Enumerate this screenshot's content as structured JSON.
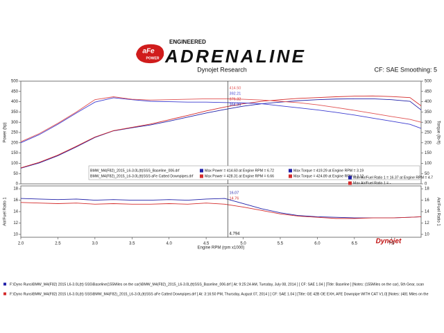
{
  "header": {
    "brand": "aFe",
    "brand_sub": "POWER",
    "tagline": "ENGINEERED",
    "title": "ADRENALINE",
    "subtitle": "Dynojet Research",
    "settings": "CF: SAE Smoothing: 5"
  },
  "chart_data": [
    {
      "type": "line",
      "y_label": "Power (hp)",
      "y2_label": "Torque (lb-ft)",
      "x": [
        2.0,
        2.25,
        2.5,
        2.75,
        3.0,
        3.25,
        3.5,
        3.75,
        4.0,
        4.25,
        4.5,
        4.75,
        5.0,
        5.25,
        5.5,
        5.75,
        6.0,
        6.25,
        6.5,
        6.75,
        7.0,
        7.25,
        7.4
      ],
      "xlim": [
        2,
        7.4
      ],
      "ylim": [
        0,
        500
      ],
      "yticks": [
        0,
        50,
        100,
        150,
        200,
        250,
        300,
        350,
        400,
        450,
        500
      ],
      "y2lim": [
        0,
        500
      ],
      "y2ticks": [
        0,
        50,
        100,
        150,
        200,
        250,
        300,
        350,
        400,
        450,
        500
      ],
      "series": [
        {
          "color": "#1f1fa8",
          "values": [
            76,
            102,
            137,
            180,
            226,
            258,
            273,
            287,
            305,
            325,
            345,
            362,
            378,
            390,
            398,
            405,
            410,
            413,
            414,
            414,
            410,
            402,
            360
          ]
        },
        {
          "color": "#d42a2a",
          "values": [
            78,
            105,
            140,
            183,
            228,
            259,
            275,
            291,
            312,
            333,
            355,
            374,
            390,
            402,
            410,
            416,
            420,
            424,
            427,
            428,
            425,
            420,
            380
          ]
        },
        {
          "color": "#3a3ad0",
          "axis": "y2",
          "values": [
            200,
            240,
            290,
            345,
            398,
            419,
            410,
            402,
            400,
            398,
            398,
            396,
            394,
            390,
            380,
            370,
            360,
            348,
            335,
            320,
            305,
            290,
            270
          ]
        },
        {
          "color": "#e05050",
          "axis": "y2",
          "values": [
            205,
            245,
            295,
            350,
            410,
            424,
            412,
            408,
            410,
            412,
            414,
            414,
            412,
            408,
            402,
            395,
            385,
            372,
            358,
            343,
            328,
            314,
            300
          ]
        }
      ],
      "legend": [
        {
          "file": "BMW_M4(F82)_2015_L6-3.0L(tt)SSS_Baseline_006.drf",
          "color": "#1f1fa8",
          "stats": [
            "Max Power = 414.60 at Engine RPM = 6.72",
            "Max Torque = 419.29 at Engine RPM = 3.19"
          ]
        },
        {
          "file": "BMW_M4(F82)_2015_L6-3.0L(tt)SSS aFe Catted Downpipes.drf",
          "color": "#d42a2a",
          "stats": [
            "Max Power = 428.31 at Engine RPM = 6.66",
            "Max Torque = 424.89 at Engine RPM = 3.12"
          ]
        }
      ],
      "cursor": {
        "x": 4.794,
        "labels": [
          {
            "value": 414.5,
            "label": "414.50",
            "color": "#e05050"
          },
          {
            "value": 392.21,
            "label": "392.21",
            "color": "#3a3ad0"
          },
          {
            "value": 376.32,
            "label": "376.32",
            "color": "#d42a2a"
          },
          {
            "value": 364.99,
            "label": "364.99",
            "color": "#1f1fa8"
          }
        ]
      }
    },
    {
      "type": "line",
      "x_label": "Engine RPM (rpm x1000)",
      "y_label": "Air/Fuel Ratio 1",
      "y2_label": "Air/Fuel Ratio 1",
      "x": [
        2.0,
        2.25,
        2.5,
        2.75,
        3.0,
        3.25,
        3.5,
        3.75,
        4.0,
        4.25,
        4.5,
        4.75,
        5.0,
        5.25,
        5.5,
        5.75,
        6.0,
        6.25,
        6.5,
        6.75,
        7.0,
        7.25,
        7.4
      ],
      "xlim": [
        2,
        7.4
      ],
      "xticks": [
        {
          "value": 2,
          "label": "2.0"
        },
        2.5,
        {
          "value": 3,
          "label": "3.0"
        },
        3.5,
        {
          "value": 4,
          "label": "4.0"
        },
        4.5,
        {
          "value": 5,
          "label": "5.0"
        },
        5.5,
        {
          "value": 6,
          "label": "6.0"
        },
        6.5,
        {
          "value": 7,
          "label": "7.0"
        }
      ],
      "ylim": [
        9.5,
        18.5
      ],
      "yticks": [
        10,
        12,
        14,
        16,
        18
      ],
      "y2lim": [
        9.5,
        18.5
      ],
      "y2ticks": [
        10,
        12,
        14,
        16,
        18
      ],
      "series": [
        {
          "color": "#1f1fa8",
          "values": [
            16.3,
            16.2,
            16.1,
            16.2,
            16.0,
            16.1,
            16.0,
            16.0,
            16.1,
            16.0,
            16.2,
            16.3,
            15.4,
            14.5,
            13.8,
            13.3,
            13.1,
            13.0,
            12.9,
            12.9,
            12.9,
            13.0,
            13.1
          ]
        },
        {
          "color": "#d42a2a",
          "values": [
            15.6,
            15.5,
            15.4,
            15.5,
            15.3,
            15.4,
            15.3,
            15.3,
            15.4,
            15.3,
            15.5,
            15.3,
            14.8,
            14.2,
            13.6,
            13.2,
            13.0,
            12.8,
            12.8,
            12.9,
            12.9,
            13.0,
            13.1
          ]
        }
      ],
      "legend": [
        {
          "color": "#1f1fa8",
          "stats": [
            "Max Air/Fuel Ratio 1 = 16.37 at Engine RPM = 4.7"
          ]
        },
        {
          "color": "#d42a2a",
          "stats": [
            "Max Air/Fuel Ratio 1 = -"
          ]
        }
      ],
      "cursor": {
        "x": 4.794,
        "labels": [
          {
            "value": 16.07,
            "color": "#1f1fa8"
          },
          {
            "value": 14.76,
            "color": "#d42a2a"
          }
        ]
      }
    }
  ],
  "footer": {
    "logo": "Dynojet",
    "runs": [
      {
        "color": "#1f1fa8",
        "text": "F:\\Dyno Runs\\BMW_M4(F82) 2015 L6-3.0L(tt) SSS\\Baseline(155Miles on the car)\\BMW_M4(F82)_2015_L6-3.0L(tt)SSS_Baseline_006.drf  [ At:  9:25:24 AM, Tuesday, July 08, 2014 ]  [ CF: SAE 1.04 ]  [Title: Baseline ]  [Notes: (155Miles on the car), 5th Gear, scan"
      },
      {
        "color": "#d42a2a",
        "text": "F:\\Dyno Runs\\BMW_M4(F82) 2015 L6-3.0L(tt) SSS\\BMW_M4(F82)_2015_L6-3.0L(tt)SSS aFe Catted Downpipes.drf  [ At:  3:16:50 PM, Thursday, August 07, 2014 ]  [ CF: SAE 1.04 ]  [Title: GE 42B OE EXH, AFE Downpipe WITH CAT V1.0]  [Notes: (481 Miles on the"
      }
    ]
  }
}
